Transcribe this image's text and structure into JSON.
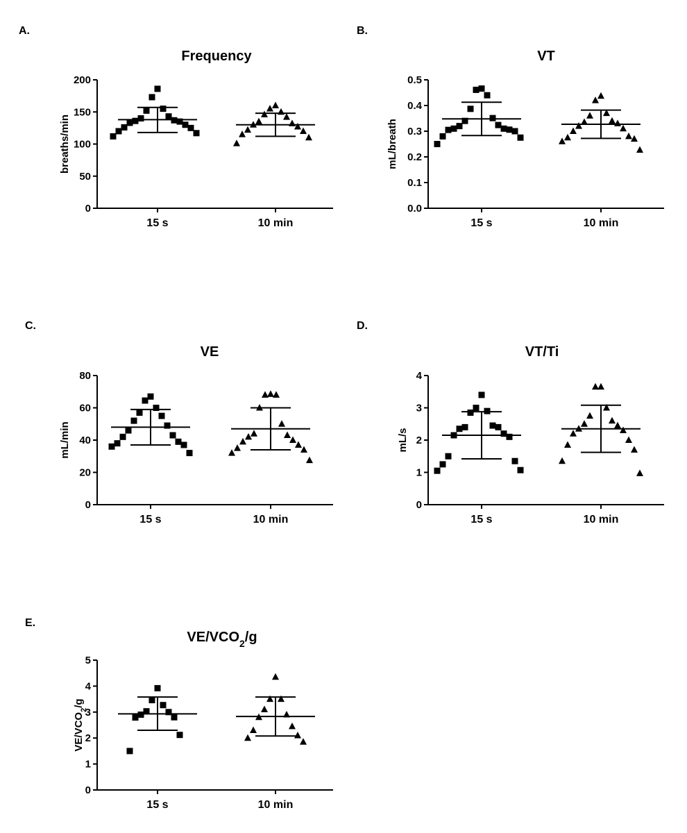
{
  "chart_data": [
    {
      "type": "scatter",
      "panel": "A.",
      "title": "Frequency",
      "ylabel": "breaths/min",
      "ylim": [
        0,
        200
      ],
      "yticks": [
        0,
        50,
        100,
        150,
        200
      ],
      "ytick_labels": [
        "0",
        "50",
        "100",
        "150",
        "200"
      ],
      "categories": [
        "15 s",
        "10 min"
      ],
      "series": [
        {
          "name": "15 s",
          "marker": "square",
          "mean": 138,
          "sd_upper": 157,
          "sd_lower": 118,
          "values": [
            186,
            173,
            155,
            152,
            143,
            140,
            137,
            136,
            135,
            133,
            130,
            126,
            125,
            120,
            117,
            112
          ]
        },
        {
          "name": "10 min",
          "marker": "triangle",
          "mean": 130,
          "sd_upper": 148,
          "sd_lower": 112,
          "values": [
            160,
            155,
            150,
            146,
            142,
            135,
            132,
            130,
            127,
            122,
            120,
            115,
            110,
            101
          ]
        }
      ]
    },
    {
      "type": "scatter",
      "panel": "B.",
      "title": "VT",
      "ylabel": "mL/breath",
      "ylim": [
        0,
        0.5
      ],
      "yticks": [
        0,
        0.1,
        0.2,
        0.3,
        0.4,
        0.5
      ],
      "ytick_labels": [
        "0.0",
        "0.1",
        "0.2",
        "0.3",
        "0.4",
        "0.5"
      ],
      "categories": [
        "15 s",
        "10 min"
      ],
      "series": [
        {
          "name": "15 s",
          "marker": "square",
          "mean": 0.348,
          "sd_upper": 0.413,
          "sd_lower": 0.283,
          "values": [
            0.466,
            0.461,
            0.44,
            0.387,
            0.351,
            0.34,
            0.324,
            0.32,
            0.31,
            0.31,
            0.306,
            0.305,
            0.3,
            0.28,
            0.275,
            0.25
          ]
        },
        {
          "name": "10 min",
          "marker": "triangle",
          "mean": 0.327,
          "sd_upper": 0.382,
          "sd_lower": 0.272,
          "values": [
            0.437,
            0.42,
            0.37,
            0.36,
            0.34,
            0.335,
            0.33,
            0.32,
            0.31,
            0.3,
            0.28,
            0.275,
            0.27,
            0.26,
            0.227
          ]
        }
      ]
    },
    {
      "type": "scatter",
      "panel": "C.",
      "title": "VE",
      "ylabel": "mL/min",
      "ylim": [
        0,
        80
      ],
      "yticks": [
        0,
        20,
        40,
        60,
        80
      ],
      "ytick_labels": [
        "0",
        "20",
        "40",
        "60",
        "80"
      ],
      "categories": [
        "15 s",
        "10 min"
      ],
      "series": [
        {
          "name": "15 s",
          "marker": "square",
          "mean": 48,
          "sd_upper": 59,
          "sd_lower": 37,
          "values": [
            67,
            64.5,
            60,
            57,
            55,
            52,
            49,
            46,
            43,
            42,
            39,
            38,
            37,
            36,
            32
          ]
        },
        {
          "name": "10 min",
          "marker": "triangle",
          "mean": 47,
          "sd_upper": 60,
          "sd_lower": 34,
          "values": [
            68.5,
            68,
            68,
            60,
            50,
            44,
            43,
            42,
            40,
            39,
            37,
            35,
            34,
            32,
            27.5
          ]
        }
      ]
    },
    {
      "type": "scatter",
      "panel": "D.",
      "title": "VT/Ti",
      "ylabel": "mL/s",
      "ylim": [
        0,
        4
      ],
      "yticks": [
        0,
        1,
        2,
        3,
        4
      ],
      "ytick_labels": [
        "0",
        "1",
        "2",
        "3",
        "4"
      ],
      "categories": [
        "15 s",
        "10 min"
      ],
      "series": [
        {
          "name": "15 s",
          "marker": "square",
          "mean": 2.15,
          "sd_upper": 2.88,
          "sd_lower": 1.42,
          "values": [
            3.4,
            3.0,
            2.9,
            2.85,
            2.45,
            2.4,
            2.4,
            2.35,
            2.2,
            2.15,
            2.1,
            1.5,
            1.35,
            1.25,
            1.07,
            1.05
          ]
        },
        {
          "name": "10 min",
          "marker": "triangle",
          "mean": 2.35,
          "sd_upper": 3.08,
          "sd_lower": 1.62,
          "values": [
            3.65,
            3.65,
            3.0,
            2.75,
            2.6,
            2.5,
            2.45,
            2.35,
            2.3,
            2.2,
            2.0,
            1.85,
            1.7,
            1.35,
            0.97
          ]
        }
      ]
    },
    {
      "type": "scatter",
      "panel": "E.",
      "title": "VE/VCO",
      "title_subscript": "2",
      "title_suffix": "/g",
      "ylabel": "VE/VCO",
      "ylabel_subscript": "2",
      "ylabel_suffix": "/g",
      "ylim": [
        0,
        5
      ],
      "yticks": [
        0,
        1,
        2,
        3,
        4,
        5
      ],
      "ytick_labels": [
        "0",
        "1",
        "2",
        "3",
        "4",
        "5"
      ],
      "categories": [
        "15 s",
        "10 min"
      ],
      "series": [
        {
          "name": "15 s",
          "marker": "square",
          "mean": 2.93,
          "sd_upper": 3.58,
          "sd_lower": 2.3,
          "values": [
            3.92,
            3.46,
            3.27,
            3.03,
            3.0,
            2.9,
            2.8,
            2.79,
            2.12,
            1.5
          ]
        },
        {
          "name": "10 min",
          "marker": "triangle",
          "mean": 2.83,
          "sd_upper": 3.58,
          "sd_lower": 2.08,
          "values": [
            4.35,
            3.5,
            3.5,
            3.1,
            2.9,
            2.8,
            2.45,
            2.3,
            2.1,
            2.0,
            1.85
          ]
        }
      ]
    }
  ]
}
